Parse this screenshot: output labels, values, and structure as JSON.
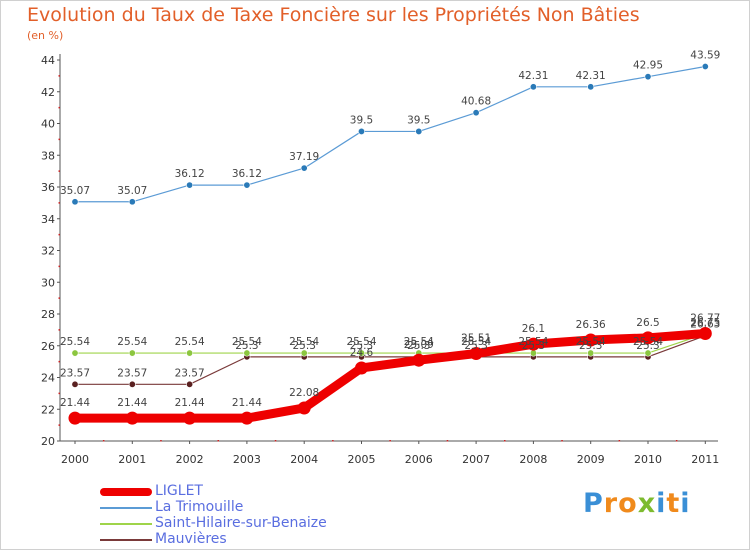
{
  "chart_data": {
    "type": "line",
    "title": "Evolution du Taux de Taxe Foncière sur les Propriétés Non Bâties",
    "subtitle": "(en %)",
    "x": [
      "2000",
      "2001",
      "2002",
      "2003",
      "2004",
      "2005",
      "2006",
      "2007",
      "2008",
      "2009",
      "2010",
      "2011"
    ],
    "ylim": [
      20,
      44
    ],
    "yticks": [
      "20",
      "22",
      "24",
      "26",
      "28",
      "30",
      "32",
      "34",
      "36",
      "38",
      "40",
      "42",
      "44"
    ],
    "grid": false,
    "legend_position": "bottom-left",
    "series": [
      {
        "name": "LIGLET",
        "color": "#ee0000",
        "values": [
          21.44,
          21.44,
          21.44,
          21.44,
          22.08,
          24.6,
          25.09,
          25.51,
          26.1,
          26.36,
          26.5,
          26.77
        ],
        "labels": [
          "21.44",
          "21.44",
          "21.44",
          "21.44",
          "22.08",
          "24.6",
          "25.09",
          "25.51",
          "26.1",
          "26.36",
          "26.5",
          "26.77"
        ]
      },
      {
        "name": "La Trimouille",
        "color": "#5b9bd5",
        "point_color": "#2a7ab8",
        "values": [
          35.07,
          35.07,
          36.12,
          36.12,
          37.19,
          39.5,
          39.5,
          40.68,
          42.31,
          42.31,
          42.95,
          43.59
        ],
        "labels": [
          "35.07",
          "35.07",
          "36.12",
          "36.12",
          "37.19",
          "39.5",
          "39.5",
          "40.68",
          "42.31",
          "42.31",
          "42.95",
          "43.59"
        ]
      },
      {
        "name": "Saint-Hilaire-sur-Benaize",
        "color": "#9fd44a",
        "point_color": "#8cc63f",
        "values": [
          25.54,
          25.54,
          25.54,
          25.54,
          25.54,
          25.54,
          25.54,
          25.54,
          25.54,
          25.54,
          25.54,
          26.75
        ],
        "labels": [
          "25.54",
          "25.54",
          "25.54",
          "25.54",
          "25.54",
          "25.54",
          "25.54",
          "25.54",
          "25.54",
          "25.54",
          "25.54",
          "26.75"
        ]
      },
      {
        "name": "Mauvières",
        "color": "#7a3a3a",
        "point_color": "#5a2020",
        "values": [
          23.57,
          23.57,
          23.57,
          25.3,
          25.3,
          25.3,
          25.3,
          25.3,
          25.3,
          25.3,
          25.3,
          26.63
        ],
        "labels": [
          "23.57",
          "23.57",
          "23.57",
          "25.3",
          "25.3",
          "25.3",
          "25.3",
          "25.3",
          "25.3",
          "25.3",
          "25.3",
          "26.63"
        ]
      }
    ]
  },
  "logo": {
    "letters": [
      "P",
      "r",
      "o",
      "x",
      "i",
      "t",
      "i"
    ],
    "colors": [
      "#3a8fd6",
      "#f08a1c",
      "#f08a1c",
      "#7dbb2f",
      "#3a8fd6",
      "#f08a1c",
      "#3a8fd6"
    ]
  }
}
